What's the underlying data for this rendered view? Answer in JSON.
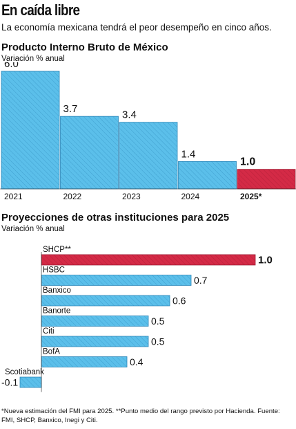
{
  "header": {
    "title": "En caída libre",
    "subtitle": "La economía mexicana tendrá el peor desempeño en cinco años."
  },
  "colors": {
    "bar": "#5bbfea",
    "bar_stroke": "#2b86b8",
    "highlight": "#d42a46",
    "highlight_stroke": "#9a1830",
    "text": "#111111"
  },
  "chart_data": [
    {
      "type": "bar",
      "title": "Producto Interno Bruto de México",
      "ylabel": "Variación % anual",
      "categories": [
        "2021",
        "2022",
        "2023",
        "2024",
        "2025*"
      ],
      "values": [
        6.0,
        3.7,
        3.4,
        1.4,
        1.0
      ],
      "value_labels": [
        "6.0",
        "3.7",
        "3.4",
        "1.4",
        "1.0"
      ],
      "highlight_index": 4,
      "ylim": [
        0,
        6.0
      ],
      "grid": false,
      "legend": "none"
    },
    {
      "type": "bar",
      "orientation": "horizontal",
      "title": "Proyecciones de otras instituciones para 2025",
      "xlabel": "Variación % anual",
      "categories": [
        "SHCP**",
        "HSBC",
        "Banxico",
        "Banorte",
        "Citi",
        "BofA",
        "Scotiabank"
      ],
      "values": [
        1.0,
        0.7,
        0.6,
        0.5,
        0.5,
        0.4,
        -0.1
      ],
      "value_labels": [
        "1.0",
        "0.7",
        "0.6",
        "0.5",
        "0.5",
        "0.4",
        "-0.1"
      ],
      "highlight_index": 0,
      "xlim": [
        -0.1,
        1.0
      ],
      "grid": false,
      "legend": "none"
    }
  ],
  "footnote": "*Nueva estimación del FMI para 2025. **Punto medio del rango previsto por Hacienda. Fuente: FMI, SHCP, Banxico, Inegi y Citi."
}
